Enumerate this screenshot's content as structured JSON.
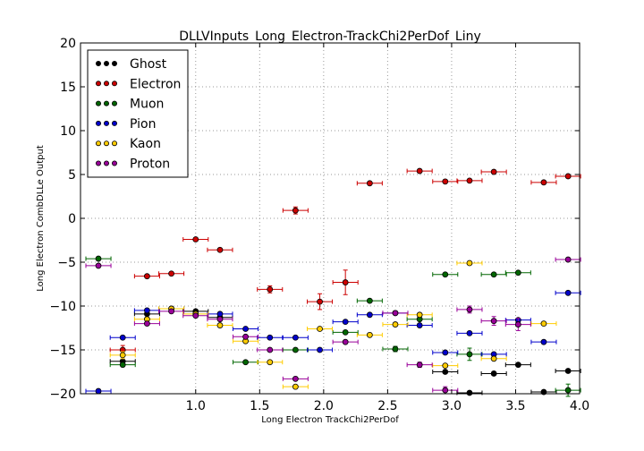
{
  "chart_data": {
    "type": "scatter",
    "title": "DLLVInputs_Long_Electron-TrackChi2PerDof_Liny",
    "xlabel": "Long Electron TrackChi2PerDof",
    "ylabel": "Long Electron CombDLLe Output",
    "xlim": [
      0.1,
      4.0
    ],
    "ylim": [
      -20,
      20
    ],
    "xticks": [
      "1.0",
      "1.5",
      "2.0",
      "2.5",
      "3.0",
      "3.5",
      "4.0"
    ],
    "yticks": [
      "20",
      "15",
      "10",
      "5",
      "0",
      "−5",
      "−10",
      "−15",
      "−20"
    ],
    "grid": true,
    "legend_position": "top-left",
    "x_bin_halfwidth": 0.098,
    "series": [
      {
        "name": "Ghost",
        "color": "#000000",
        "points": [
          [
            0.43,
            -16.3,
            0
          ],
          [
            0.62,
            -10.9,
            0
          ],
          [
            0.81,
            -10.3,
            0
          ],
          [
            1.0,
            -10.6,
            0
          ],
          [
            1.19,
            -11.3,
            0
          ],
          [
            2.95,
            -17.5,
            0
          ],
          [
            3.14,
            -19.9,
            0
          ],
          [
            3.33,
            -17.7,
            0
          ],
          [
            3.52,
            -16.7,
            0
          ],
          [
            3.72,
            -19.8,
            0
          ],
          [
            3.91,
            -17.4,
            0
          ]
        ]
      },
      {
        "name": "Electron",
        "color": "#cc0000",
        "points": [
          [
            0.43,
            -15.0,
            0.5
          ],
          [
            0.62,
            -6.6,
            0
          ],
          [
            0.81,
            -6.3,
            0
          ],
          [
            1.0,
            -2.4,
            0
          ],
          [
            1.19,
            -3.6,
            0
          ],
          [
            1.58,
            -8.1,
            0.4
          ],
          [
            1.78,
            0.9,
            0.4
          ],
          [
            1.97,
            -9.5,
            0.9
          ],
          [
            2.17,
            -7.3,
            1.4
          ],
          [
            2.36,
            4.0,
            0
          ],
          [
            2.75,
            5.4,
            0
          ],
          [
            2.95,
            4.2,
            0
          ],
          [
            3.14,
            4.3,
            0
          ],
          [
            3.33,
            5.3,
            0
          ],
          [
            3.72,
            4.1,
            0
          ],
          [
            3.91,
            4.8,
            0
          ]
        ]
      },
      {
        "name": "Muon",
        "color": "#006600",
        "points": [
          [
            0.24,
            -4.6,
            0
          ],
          [
            0.43,
            -16.7,
            0
          ],
          [
            1.39,
            -16.4,
            0
          ],
          [
            1.78,
            -15.0,
            0
          ],
          [
            2.17,
            -13.0,
            0
          ],
          [
            2.36,
            -9.4,
            0
          ],
          [
            2.56,
            -14.9,
            0.3
          ],
          [
            2.75,
            -11.5,
            0
          ],
          [
            2.95,
            -6.4,
            0
          ],
          [
            3.14,
            -15.5,
            0.7
          ],
          [
            3.33,
            -6.4,
            0
          ],
          [
            3.52,
            -6.2,
            0
          ],
          [
            3.91,
            -19.6,
            0.7
          ]
        ]
      },
      {
        "name": "Pion",
        "color": "#0000cc",
        "points": [
          [
            0.24,
            -19.7,
            0
          ],
          [
            0.43,
            -13.6,
            0
          ],
          [
            0.62,
            -10.5,
            0
          ],
          [
            1.19,
            -10.9,
            0
          ],
          [
            1.39,
            -12.6,
            0
          ],
          [
            1.58,
            -13.6,
            0
          ],
          [
            1.78,
            -13.6,
            0
          ],
          [
            1.97,
            -15.0,
            0
          ],
          [
            2.17,
            -11.8,
            0
          ],
          [
            2.36,
            -11.0,
            0
          ],
          [
            2.56,
            -10.8,
            0
          ],
          [
            2.75,
            -12.2,
            0
          ],
          [
            2.95,
            -15.3,
            0
          ],
          [
            3.14,
            -13.1,
            0
          ],
          [
            3.33,
            -15.5,
            0
          ],
          [
            3.52,
            -11.6,
            0
          ],
          [
            3.72,
            -14.1,
            0
          ],
          [
            3.91,
            -8.5,
            0
          ]
        ]
      },
      {
        "name": "Kaon",
        "color": "#ffcc00",
        "points": [
          [
            0.43,
            -15.6,
            0.4
          ],
          [
            0.62,
            -11.5,
            0
          ],
          [
            0.81,
            -10.3,
            0
          ],
          [
            1.0,
            -10.9,
            0
          ],
          [
            1.19,
            -12.2,
            0
          ],
          [
            1.39,
            -14.0,
            0
          ],
          [
            1.58,
            -16.4,
            0
          ],
          [
            1.78,
            -19.2,
            0
          ],
          [
            1.97,
            -12.6,
            0
          ],
          [
            2.36,
            -13.3,
            0
          ],
          [
            2.56,
            -12.1,
            0
          ],
          [
            2.75,
            -11.0,
            0
          ],
          [
            2.95,
            -16.8,
            0
          ],
          [
            3.14,
            -5.1,
            0
          ],
          [
            3.33,
            -16.0,
            0
          ],
          [
            3.72,
            -12.0,
            0
          ]
        ]
      },
      {
        "name": "Proton",
        "color": "#990099",
        "points": [
          [
            0.24,
            -5.4,
            0
          ],
          [
            0.62,
            -12.0,
            0
          ],
          [
            0.81,
            -10.6,
            0
          ],
          [
            1.0,
            -11.1,
            0
          ],
          [
            1.19,
            -11.5,
            0
          ],
          [
            1.39,
            -13.5,
            0
          ],
          [
            1.58,
            -15.0,
            0
          ],
          [
            1.78,
            -18.3,
            0
          ],
          [
            2.17,
            -14.1,
            0
          ],
          [
            2.56,
            -10.8,
            0
          ],
          [
            2.75,
            -16.7,
            0.3
          ],
          [
            2.95,
            -19.6,
            0.4
          ],
          [
            3.14,
            -10.4,
            0.4
          ],
          [
            3.33,
            -11.7,
            0.5
          ],
          [
            3.52,
            -12.1,
            0.7
          ],
          [
            3.91,
            -4.7,
            0
          ]
        ]
      }
    ]
  }
}
